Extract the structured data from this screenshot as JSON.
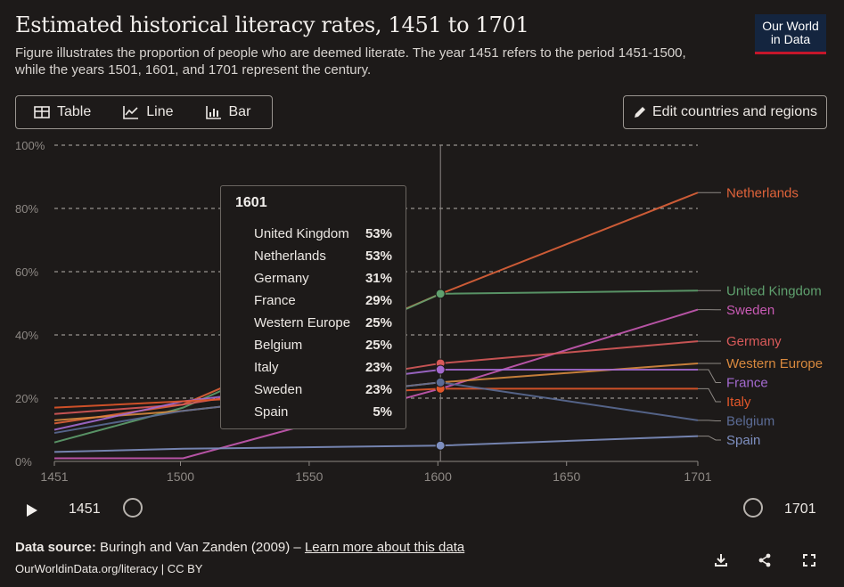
{
  "header": {
    "title": "Estimated historical literacy rates, 1451 to 1701",
    "subtitle": "Figure illustrates the proportion of people who are deemed literate. The year 1451 refers to the period 1451-1500, while the years 1501, 1601, and 1701 represent the century.",
    "logo_line1": "Our World",
    "logo_line2": "in Data"
  },
  "tabs": [
    {
      "label": "Table",
      "icon": "table-icon"
    },
    {
      "label": "Line",
      "icon": "line-chart-icon"
    },
    {
      "label": "Bar",
      "icon": "bar-chart-icon"
    }
  ],
  "edit_button": {
    "label": "Edit countries and regions",
    "icon": "pencil-icon"
  },
  "tooltip": {
    "year": "1601",
    "rows": [
      {
        "name": "United Kingdom",
        "value": "53%"
      },
      {
        "name": "Netherlands",
        "value": "53%"
      },
      {
        "name": "Germany",
        "value": "31%"
      },
      {
        "name": "France",
        "value": "29%"
      },
      {
        "name": "Western Europe",
        "value": "25%"
      },
      {
        "name": "Belgium",
        "value": "25%"
      },
      {
        "name": "Italy",
        "value": "23%"
      },
      {
        "name": "Sweden",
        "value": "23%"
      },
      {
        "name": "Spain",
        "value": "5%"
      }
    ]
  },
  "timeline": {
    "start": "1451",
    "end": "1701"
  },
  "footer": {
    "source_prefix": "Data source:",
    "source_text": "Buringh and Van Zanden (2009) –",
    "learn_more": "Learn more about this data",
    "url": "OurWorldinData.org/literacy | CC BY"
  },
  "colors": {
    "background": "#1d1a19",
    "Netherlands": "#e0633a",
    "United Kingdom": "#5fa06e",
    "Sweden": "#c85ab4",
    "Germany": "#d85a5a",
    "Western Europe": "#d8893e",
    "France": "#a46ad0",
    "Italy": "#e2572a",
    "Belgium": "#5b6b95",
    "Spain": "#7e8fc0"
  },
  "chart_data": {
    "type": "line",
    "x": [
      1451,
      1501,
      1601,
      1701
    ],
    "xticks": [
      "1451",
      "1500",
      "1550",
      "1600",
      "1650",
      "1701"
    ],
    "yticks": [
      "0%",
      "20%",
      "40%",
      "60%",
      "80%",
      "100%"
    ],
    "ylim": [
      0,
      100
    ],
    "xlim": [
      1451,
      1701
    ],
    "hover_x": 1601,
    "series": [
      {
        "name": "Netherlands",
        "values": [
          12,
          18,
          53,
          85
        ]
      },
      {
        "name": "United Kingdom",
        "values": [
          6,
          17,
          53,
          54
        ]
      },
      {
        "name": "Sweden",
        "values": [
          1,
          1,
          23,
          48
        ]
      },
      {
        "name": "Germany",
        "values": [
          15,
          18,
          31,
          38
        ]
      },
      {
        "name": "Western Europe",
        "values": [
          13,
          16,
          25,
          31
        ]
      },
      {
        "name": "France",
        "values": [
          10,
          19,
          29,
          29
        ]
      },
      {
        "name": "Italy",
        "values": [
          17,
          19,
          23,
          23
        ]
      },
      {
        "name": "Belgium",
        "values": [
          9,
          16,
          25,
          13
        ]
      },
      {
        "name": "Spain",
        "values": [
          3,
          4,
          5,
          8
        ]
      }
    ],
    "legend_placement": "right"
  }
}
